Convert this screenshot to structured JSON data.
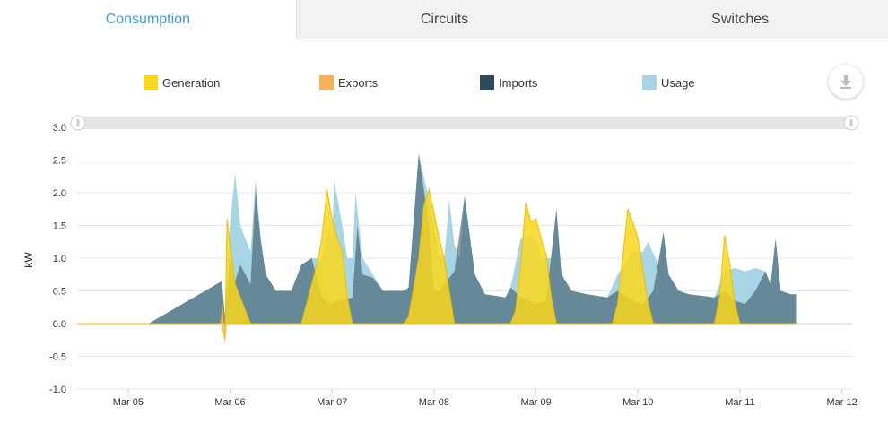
{
  "tabs": [
    {
      "label": "Consumption",
      "active": true
    },
    {
      "label": "Circuits",
      "active": false
    },
    {
      "label": "Switches",
      "active": false
    }
  ],
  "legend": [
    {
      "label": "Generation",
      "color": "#f9d71c"
    },
    {
      "label": "Exports",
      "color": "#f5b25b"
    },
    {
      "label": "Imports",
      "color": "#2d4a5a"
    },
    {
      "label": "Usage",
      "color": "#a8d5e5"
    }
  ],
  "download_icon": "download-icon",
  "chart_data": {
    "type": "area",
    "ylabel": "kW",
    "ylim": [
      -1.0,
      3.0
    ],
    "yticks": [
      "3.0",
      "2.5",
      "2.0",
      "1.5",
      "1.0",
      "0.5",
      "0.0",
      "-0.5",
      "-1.0"
    ],
    "xlim": [
      4.5,
      12.1
    ],
    "xticks": [
      {
        "label": "Mar 05",
        "x": 5
      },
      {
        "label": "Mar 06",
        "x": 6
      },
      {
        "label": "Mar 07",
        "x": 7
      },
      {
        "label": "Mar 08",
        "x": 8
      },
      {
        "label": "Mar 09",
        "x": 9
      },
      {
        "label": "Mar 10",
        "x": 10
      },
      {
        "label": "Mar 11",
        "x": 11
      },
      {
        "label": "Mar 12",
        "x": 12
      }
    ],
    "grid": true,
    "legend_position": "top",
    "series": [
      {
        "name": "Usage",
        "color": "#a8d5e5",
        "points": [
          [
            4.5,
            0
          ],
          [
            5.2,
            0
          ],
          [
            5.92,
            0.65
          ],
          [
            5.95,
            0.1
          ],
          [
            6.0,
            1.55
          ],
          [
            6.05,
            2.3
          ],
          [
            6.1,
            1.5
          ],
          [
            6.2,
            1.1
          ],
          [
            6.25,
            2.2
          ],
          [
            6.3,
            1.3
          ],
          [
            6.35,
            0.75
          ],
          [
            6.45,
            0.5
          ],
          [
            6.6,
            0.5
          ],
          [
            6.7,
            0.9
          ],
          [
            6.8,
            1.0
          ],
          [
            6.9,
            1.0
          ],
          [
            6.97,
            1.45
          ],
          [
            7.0,
            1.25
          ],
          [
            7.02,
            2.2
          ],
          [
            7.1,
            1.5
          ],
          [
            7.15,
            1.0
          ],
          [
            7.2,
            1.0
          ],
          [
            7.23,
            2.0
          ],
          [
            7.3,
            1.0
          ],
          [
            7.4,
            0.75
          ],
          [
            7.5,
            0.5
          ],
          [
            7.7,
            0.5
          ],
          [
            7.75,
            0.55
          ],
          [
            7.85,
            2.6
          ],
          [
            7.95,
            1.9
          ],
          [
            8.0,
            1.5
          ],
          [
            8.05,
            1.0
          ],
          [
            8.1,
            1.0
          ],
          [
            8.15,
            1.9
          ],
          [
            8.2,
            1.2
          ],
          [
            8.25,
            1.0
          ],
          [
            8.3,
            1.95
          ],
          [
            8.4,
            0.75
          ],
          [
            8.5,
            0.45
          ],
          [
            8.7,
            0.4
          ],
          [
            8.75,
            0.55
          ],
          [
            8.85,
            1.3
          ],
          [
            8.95,
            1.35
          ],
          [
            9.0,
            1.3
          ],
          [
            9.05,
            1.0
          ],
          [
            9.15,
            1.0
          ],
          [
            9.2,
            1.75
          ],
          [
            9.25,
            0.75
          ],
          [
            9.35,
            0.5
          ],
          [
            9.5,
            0.45
          ],
          [
            9.7,
            0.4
          ],
          [
            9.8,
            0.75
          ],
          [
            9.95,
            1.1
          ],
          [
            10.05,
            1.1
          ],
          [
            10.1,
            1.25
          ],
          [
            10.2,
            0.9
          ],
          [
            10.25,
            1.4
          ],
          [
            10.3,
            0.75
          ],
          [
            10.4,
            0.5
          ],
          [
            10.5,
            0.45
          ],
          [
            10.75,
            0.4
          ],
          [
            10.85,
            0.8
          ],
          [
            10.95,
            0.85
          ],
          [
            11.05,
            0.8
          ],
          [
            11.15,
            0.85
          ],
          [
            11.25,
            0.8
          ],
          [
            11.3,
            0.6
          ],
          [
            11.35,
            1.3
          ],
          [
            11.4,
            0.5
          ],
          [
            11.5,
            0.45
          ],
          [
            11.55,
            0.45
          ],
          [
            11.55,
            0
          ]
        ]
      },
      {
        "name": "Imports",
        "color": "#2d4a5a",
        "points": [
          [
            4.5,
            0
          ],
          [
            5.2,
            0
          ],
          [
            5.92,
            0.65
          ],
          [
            5.95,
            0.1
          ],
          [
            6.0,
            1.0
          ],
          [
            6.05,
            0.65
          ],
          [
            6.1,
            0.9
          ],
          [
            6.2,
            0.6
          ],
          [
            6.25,
            2.05
          ],
          [
            6.3,
            1.3
          ],
          [
            6.35,
            0.75
          ],
          [
            6.45,
            0.5
          ],
          [
            6.6,
            0.5
          ],
          [
            6.7,
            0.9
          ],
          [
            6.8,
            1.0
          ],
          [
            6.9,
            0.4
          ],
          [
            7.0,
            0.3
          ],
          [
            7.05,
            0.35
          ],
          [
            7.1,
            0.35
          ],
          [
            7.2,
            0.4
          ],
          [
            7.25,
            1.5
          ],
          [
            7.3,
            0.75
          ],
          [
            7.4,
            0.7
          ],
          [
            7.5,
            0.5
          ],
          [
            7.7,
            0.5
          ],
          [
            7.75,
            0.55
          ],
          [
            7.85,
            2.6
          ],
          [
            7.95,
            1.5
          ],
          [
            8.0,
            0.5
          ],
          [
            8.05,
            0.5
          ],
          [
            8.2,
            0.8
          ],
          [
            8.3,
            1.95
          ],
          [
            8.4,
            0.75
          ],
          [
            8.5,
            0.45
          ],
          [
            8.7,
            0.4
          ],
          [
            8.75,
            0.55
          ],
          [
            8.85,
            0.4
          ],
          [
            9.0,
            0.3
          ],
          [
            9.1,
            0.35
          ],
          [
            9.2,
            1.75
          ],
          [
            9.25,
            0.75
          ],
          [
            9.35,
            0.5
          ],
          [
            9.5,
            0.45
          ],
          [
            9.7,
            0.4
          ],
          [
            9.8,
            0.5
          ],
          [
            9.95,
            0.35
          ],
          [
            10.05,
            0.3
          ],
          [
            10.15,
            0.5
          ],
          [
            10.25,
            1.4
          ],
          [
            10.3,
            0.75
          ],
          [
            10.4,
            0.5
          ],
          [
            10.5,
            0.45
          ],
          [
            10.75,
            0.4
          ],
          [
            10.85,
            0.5
          ],
          [
            10.95,
            0.35
          ],
          [
            11.05,
            0.3
          ],
          [
            11.15,
            0.5
          ],
          [
            11.25,
            0.8
          ],
          [
            11.3,
            0.6
          ],
          [
            11.35,
            1.3
          ],
          [
            11.4,
            0.5
          ],
          [
            11.5,
            0.45
          ],
          [
            11.55,
            0.45
          ],
          [
            11.55,
            0
          ]
        ]
      },
      {
        "name": "Generation",
        "color": "#f9d71c",
        "points": [
          [
            4.5,
            0
          ],
          [
            5.92,
            0
          ],
          [
            5.95,
            -0.25
          ],
          [
            5.97,
            1.6
          ],
          [
            6.0,
            1.2
          ],
          [
            6.05,
            0.6
          ],
          [
            6.15,
            0.2
          ],
          [
            6.2,
            0
          ],
          [
            6.7,
            0
          ],
          [
            6.75,
            0.3
          ],
          [
            6.85,
            0.9
          ],
          [
            6.9,
            1.3
          ],
          [
            6.95,
            2.05
          ],
          [
            7.0,
            1.6
          ],
          [
            7.05,
            1.3
          ],
          [
            7.1,
            1.1
          ],
          [
            7.15,
            0.4
          ],
          [
            7.2,
            0
          ],
          [
            7.7,
            0
          ],
          [
            7.75,
            0.1
          ],
          [
            7.85,
            1.0
          ],
          [
            7.9,
            1.8
          ],
          [
            7.95,
            2.05
          ],
          [
            8.0,
            1.7
          ],
          [
            8.05,
            1.3
          ],
          [
            8.1,
            1.0
          ],
          [
            8.15,
            0.5
          ],
          [
            8.2,
            0
          ],
          [
            8.75,
            0
          ],
          [
            8.8,
            0.2
          ],
          [
            8.85,
            0.9
          ],
          [
            8.9,
            1.85
          ],
          [
            8.95,
            1.55
          ],
          [
            9.0,
            1.6
          ],
          [
            9.05,
            1.3
          ],
          [
            9.1,
            1.05
          ],
          [
            9.15,
            0.4
          ],
          [
            9.2,
            0
          ],
          [
            9.75,
            0
          ],
          [
            9.8,
            0.3
          ],
          [
            9.85,
            1.0
          ],
          [
            9.9,
            1.75
          ],
          [
            9.95,
            1.55
          ],
          [
            10.0,
            1.3
          ],
          [
            10.05,
            0.8
          ],
          [
            10.1,
            0.3
          ],
          [
            10.15,
            0
          ],
          [
            10.75,
            0
          ],
          [
            10.8,
            0.4
          ],
          [
            10.85,
            1.35
          ],
          [
            10.9,
            0.9
          ],
          [
            10.95,
            0.3
          ],
          [
            11.0,
            0
          ],
          [
            11.55,
            0
          ]
        ]
      },
      {
        "name": "Exports",
        "color": "#f5b25b",
        "points": [
          [
            4.5,
            0
          ],
          [
            5.9,
            0
          ],
          [
            5.93,
            0.3
          ],
          [
            5.95,
            -0.3
          ],
          [
            5.97,
            0
          ],
          [
            11.55,
            0
          ]
        ]
      }
    ]
  }
}
